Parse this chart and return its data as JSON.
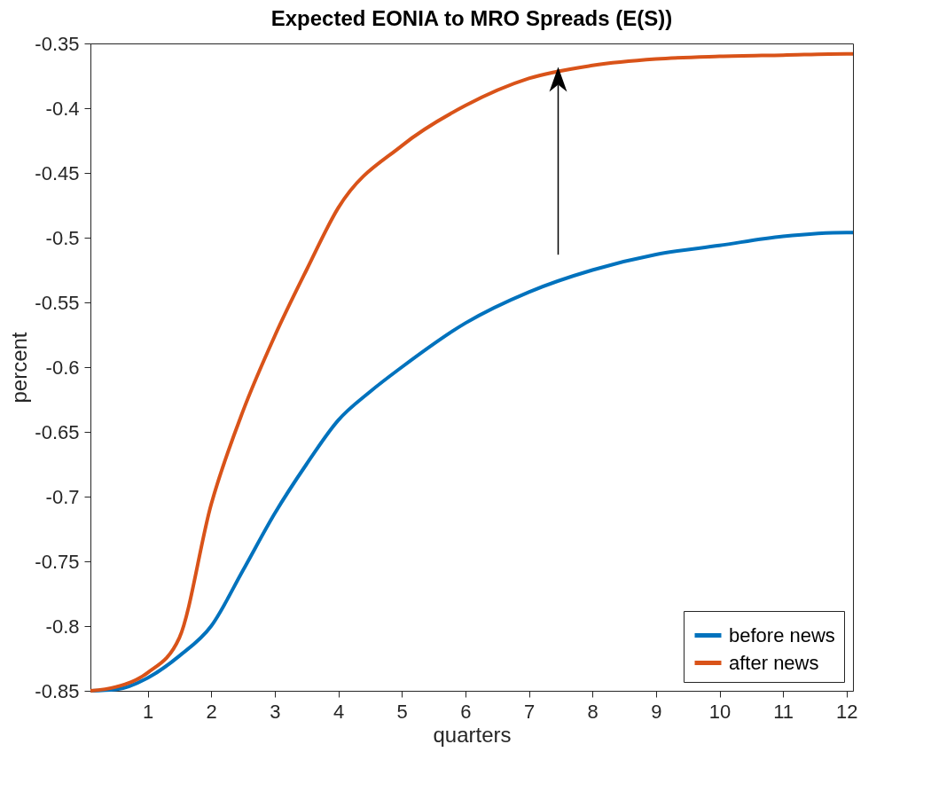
{
  "chart_data": {
    "type": "line",
    "title": "Expected EONIA to MRO Spreads (E(S))",
    "xlabel": "quarters",
    "ylabel": "percent",
    "xlim": [
      0.1,
      12.1
    ],
    "xticks": [
      1,
      2,
      3,
      4,
      5,
      6,
      7,
      8,
      9,
      10,
      11,
      12
    ],
    "ylim": [
      -0.85,
      -0.35
    ],
    "yticks": [
      -0.85,
      -0.8,
      -0.75,
      -0.7,
      -0.65,
      -0.6,
      -0.55,
      -0.5,
      -0.45,
      -0.4,
      -0.35
    ],
    "grid": false,
    "legend": "bottom right",
    "line_style": "solid",
    "marker": "none",
    "series": [
      {
        "name": "before news",
        "color": "#0072bd",
        "x": [
          0.1,
          0.5,
          1,
          1.5,
          2,
          2.5,
          3,
          3.5,
          4,
          4.5,
          5,
          6,
          7,
          8,
          9,
          10,
          11,
          12,
          12.1
        ],
        "values": [
          -0.85,
          -0.849,
          -0.84,
          -0.823,
          -0.8,
          -0.757,
          -0.713,
          -0.675,
          -0.641,
          -0.619,
          -0.6,
          -0.566,
          -0.542,
          -0.525,
          -0.513,
          -0.506,
          -0.499,
          -0.496,
          -0.496
        ]
      },
      {
        "name": "after news",
        "color": "#d95319",
        "x": [
          0.1,
          0.5,
          1,
          1.5,
          2,
          2.5,
          3,
          3.5,
          4,
          5,
          6,
          7,
          8,
          9,
          10,
          11,
          12,
          12.1
        ],
        "values": [
          -0.85,
          -0.847,
          -0.836,
          -0.809,
          -0.706,
          -0.634,
          -0.576,
          -0.525,
          -0.477,
          -0.429,
          -0.398,
          -0.377,
          -0.367,
          -0.362,
          -0.36,
          -0.359,
          -0.358,
          -0.358
        ]
      }
    ]
  }
}
